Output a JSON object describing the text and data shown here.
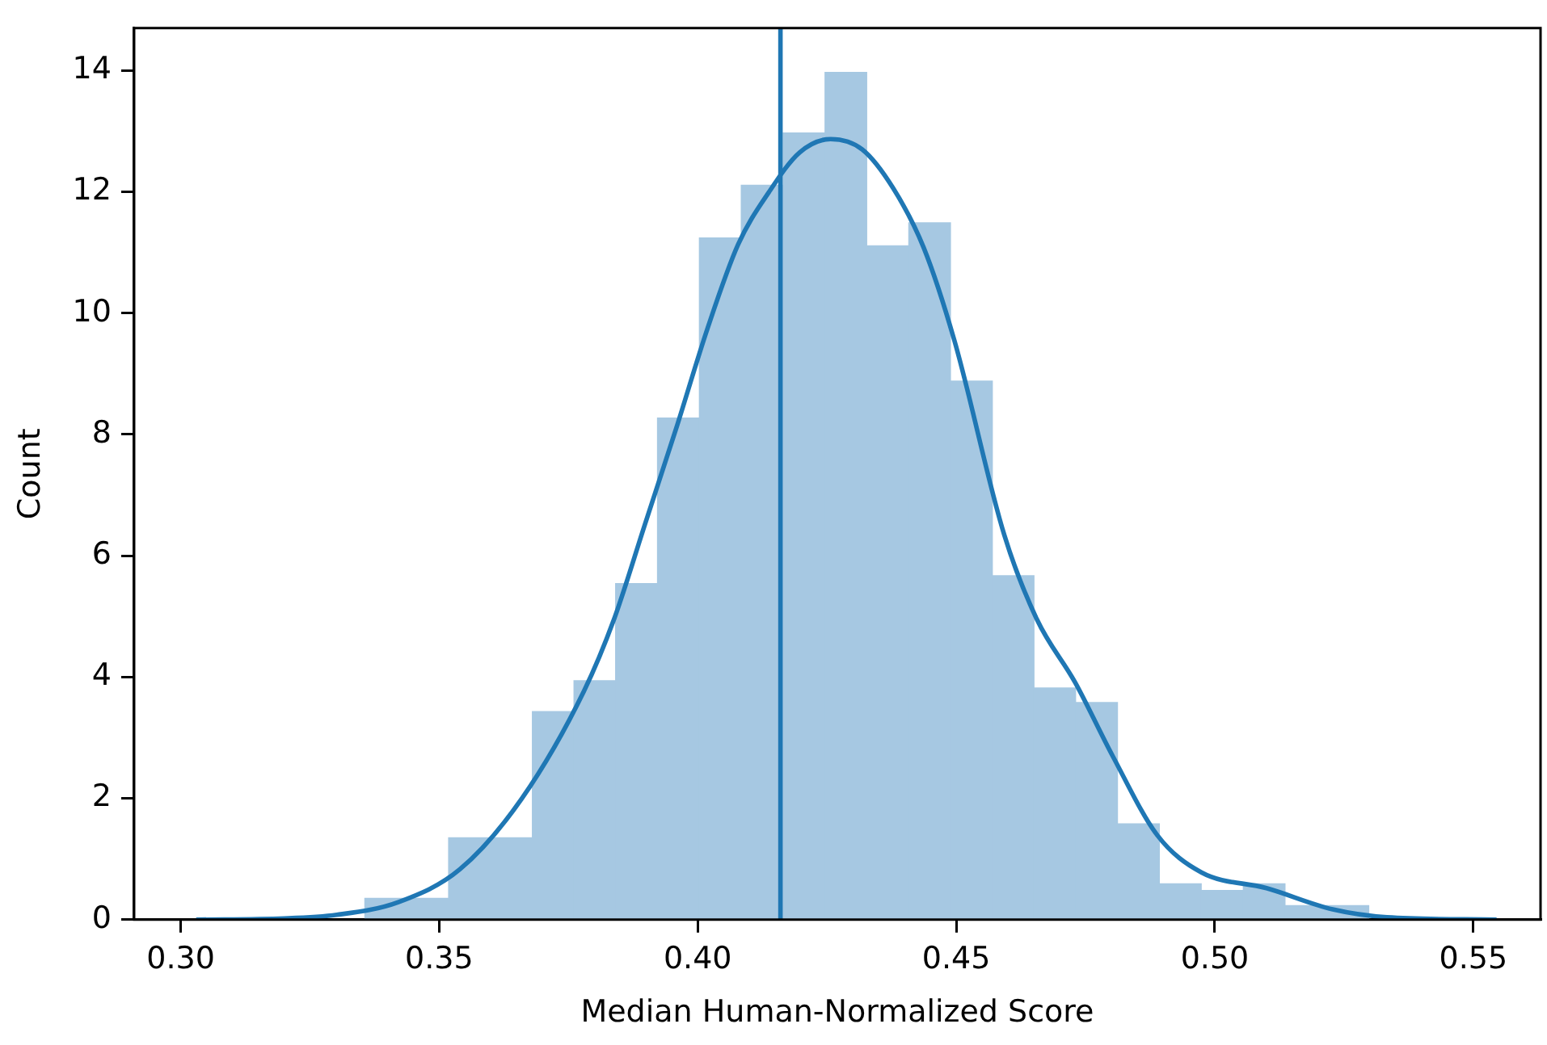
{
  "chart_data": {
    "type": "histogram",
    "xlabel": "Median Human-Normalized Score",
    "ylabel": "Count",
    "bins": [
      0.3356,
      0.3437,
      0.3518,
      0.3599,
      0.368,
      0.3761,
      0.3841,
      0.3922,
      0.4003,
      0.4084,
      0.4165,
      0.4246,
      0.4327,
      0.4408,
      0.4489,
      0.457,
      0.465,
      0.4731,
      0.4812,
      0.4893,
      0.4974,
      0.5055,
      0.5136,
      0.5217,
      0.5298
    ],
    "values": [
      0.35,
      0.35,
      1.35,
      1.35,
      3.43,
      3.94,
      5.54,
      8.27,
      11.24,
      12.11,
      12.97,
      13.97,
      11.11,
      11.49,
      8.88,
      5.67,
      3.82,
      3.58,
      1.58,
      0.59,
      0.48,
      0.59,
      0.23,
      0.23
    ],
    "color": "#a6c8e2",
    "series": [
      {
        "type": "line",
        "color": "#1f77b4",
        "x": [
          0.303,
          0.32,
          0.3302,
          0.3421,
          0.354,
          0.366,
          0.378,
          0.3838,
          0.3898,
          0.3958,
          0.4019,
          0.4078,
          0.4138,
          0.4197,
          0.4257,
          0.4318,
          0.4378,
          0.4437,
          0.4496,
          0.4593,
          0.4656,
          0.473,
          0.4803,
          0.4889,
          0.4974,
          0.51,
          0.5228,
          0.5333,
          0.5545
        ],
        "values": [
          0,
          0.02,
          0.08,
          0.29,
          0.83,
          2.0,
          3.77,
          4.95,
          6.52,
          8.09,
          9.75,
          11.13,
          12.0,
          12.65,
          12.87,
          12.7,
          12.06,
          11.08,
          9.56,
          6.34,
          4.95,
          3.91,
          2.69,
          1.39,
          0.78,
          0.52,
          0.17,
          0.04,
          0
        ]
      }
    ],
    "ref_lines": [
      {
        "axis": "x",
        "value": 0.416,
        "color": "#1f77b4"
      }
    ],
    "xlim": [
      0.291,
      0.563
    ],
    "ylim": [
      0,
      14.7
    ],
    "xticks": [
      {
        "value": 0.3,
        "label": "0.30"
      },
      0.35,
      {
        "value": 0.4,
        "label": "0.40"
      },
      0.45,
      {
        "value": 0.5,
        "label": "0.50"
      },
      0.55
    ],
    "yticks": [
      0,
      2,
      4,
      6,
      8,
      10,
      12,
      14
    ],
    "grid": false,
    "legend": false,
    "marker": "none",
    "line_style": "solid"
  }
}
